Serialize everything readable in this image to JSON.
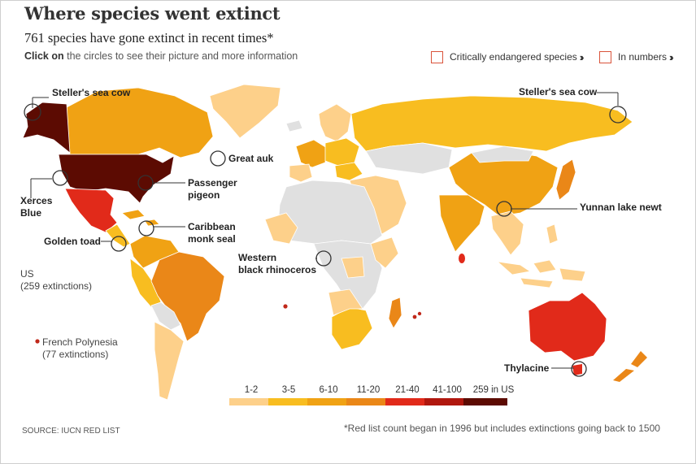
{
  "title": "Where species went extinct",
  "subtitle": "761 species have gone extinct in recent times*",
  "instruction": {
    "bold": "Click on",
    "rest": " the circles to see their picture and more information"
  },
  "toggles": [
    {
      "label": "Critically endangered species",
      "chevron": "››"
    },
    {
      "label": "In numbers",
      "chevron": "››"
    }
  ],
  "species_labels": {
    "stellers_left": "Steller's sea cow",
    "stellers_right": "Steller's sea cow",
    "great_auk": "Great auk",
    "passenger_pigeon_1": "Passenger",
    "passenger_pigeon_2": "pigeon",
    "xerces_1": "Xerces",
    "xerces_2": "Blue",
    "caribbean_1": "Caribbean",
    "caribbean_2": "monk seal",
    "golden_toad": "Golden toad",
    "rhino_1": "Western",
    "rhino_2": "black rhinoceros",
    "yunnan": "Yunnan lake newt",
    "thylacine": "Thylacine"
  },
  "notes": {
    "us_1": "US",
    "us_2": "(259 extinctions)",
    "fp_1": "French Polynesia",
    "fp_2": "(77 extinctions)"
  },
  "legend": [
    {
      "label": "1-2",
      "color": "#fdd08a"
    },
    {
      "label": "3-5",
      "color": "#f8bd20"
    },
    {
      "label": "6-10",
      "color": "#f0a214"
    },
    {
      "label": "11-20",
      "color": "#ea8718"
    },
    {
      "label": "21-40",
      "color": "#e12a1a"
    },
    {
      "label": "41-100",
      "color": "#b0170e"
    },
    {
      "label": "259 in US",
      "color": "#5c0b02"
    }
  ],
  "source": "SOURCE: IUCN RED LIST",
  "footnote": "*Red list count began in 1996 but includes extinctions going back to 1500",
  "colors": {
    "no_data": "#e0e0e0",
    "circle_stroke": "#333333",
    "dot": "#c0281a"
  }
}
